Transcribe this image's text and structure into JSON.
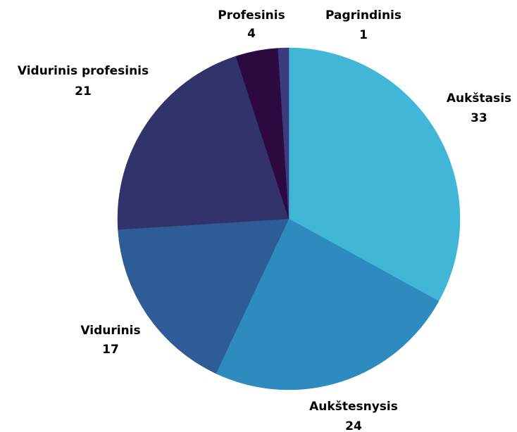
{
  "chart_data": {
    "type": "pie",
    "categories": [
      "Aukštasis",
      "Aukštesnysis",
      "Vidurinis",
      "Vidurinis profesinis",
      "Profesinis",
      "Pagrindinis"
    ],
    "values": [
      33,
      24,
      17,
      21,
      4,
      1
    ],
    "colors": [
      "#41b6d6",
      "#2e8bbf",
      "#2e5c97",
      "#33336b",
      "#2c0a3f",
      "#3b3b7d"
    ]
  }
}
